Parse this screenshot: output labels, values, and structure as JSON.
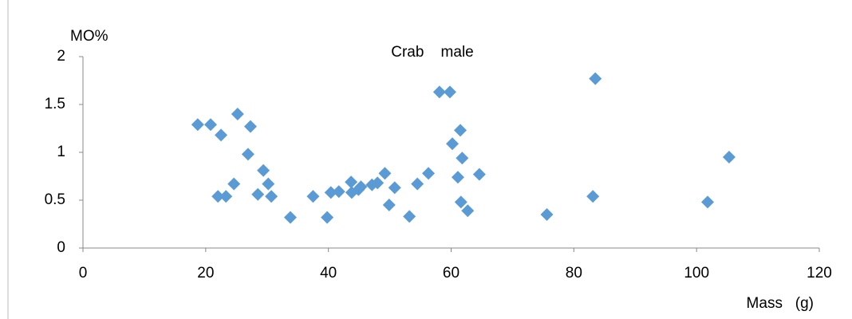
{
  "chart_data": {
    "type": "scatter",
    "title": "Crab    male",
    "y_label": "MO%",
    "x_label": "Mass   (g)",
    "xlim": [
      0,
      120
    ],
    "xticks": [
      0,
      20,
      40,
      60,
      80,
      100,
      120
    ],
    "ylim": [
      0,
      2
    ],
    "yticks": [
      0,
      0.5,
      1,
      1.5,
      2
    ],
    "series": [
      {
        "name": "Crab male",
        "color": "#5b9bd5",
        "x": [
          18.7,
          20.8,
          22.5,
          22.0,
          23.3,
          24.6,
          25.2,
          27.3,
          26.9,
          28.5,
          29.4,
          30.2,
          30.7,
          33.8,
          37.5,
          39.8,
          40.4,
          41.7,
          43.7,
          43.8,
          44.9,
          45.3,
          47.1,
          48.0,
          49.2,
          49.9,
          50.8,
          53.2,
          54.5,
          56.3,
          58.1,
          59.8,
          60.2,
          61.5,
          61.8,
          61.1,
          61.6,
          62.7,
          64.6,
          75.6,
          83.1,
          83.5,
          101.8,
          105.3
        ],
        "values": [
          1.29,
          1.29,
          1.18,
          0.54,
          0.54,
          0.67,
          1.4,
          1.27,
          0.98,
          0.56,
          0.81,
          0.67,
          0.54,
          0.32,
          0.54,
          0.32,
          0.58,
          0.59,
          0.69,
          0.58,
          0.61,
          0.64,
          0.66,
          0.68,
          0.78,
          0.45,
          0.63,
          0.33,
          0.67,
          0.78,
          1.63,
          1.63,
          1.09,
          1.23,
          0.94,
          0.74,
          0.48,
          0.39,
          0.77,
          0.35,
          0.54,
          1.77,
          0.48,
          0.95
        ]
      }
    ]
  }
}
